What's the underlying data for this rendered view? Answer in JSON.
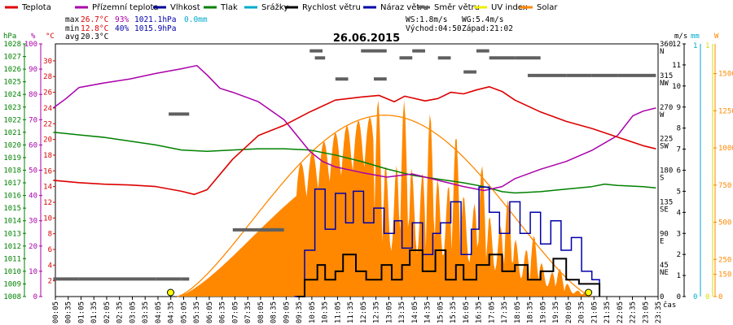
{
  "colors": {
    "teplota": "#dd0000",
    "pocitova": "#aa00aa",
    "vlhkost": "#000099",
    "tlak": "#008000",
    "srazky": "#00aacc",
    "rychlost": "#000000",
    "naraz": "#0000aa",
    "smer": "#606060",
    "uv": "#eeee00",
    "solar": "#ff8800",
    "solarFill": "#ff8800"
  },
  "chart_data": {
    "type": "line",
    "title": "26.06.2015",
    "legend": [
      {
        "key": "teplota",
        "label": "Teplota"
      },
      {
        "key": "pocitova",
        "label": "Přízemní teplota"
      },
      {
        "key": "vlhkost",
        "label": "Vlhkost"
      },
      {
        "key": "tlak",
        "label": "Tlak"
      },
      {
        "key": "srazky",
        "label": "Srážky"
      },
      {
        "key": "rychlost",
        "label": "Rychlost větru"
      },
      {
        "key": "naraz",
        "label": "Náraz větru"
      },
      {
        "key": "smer",
        "label": "Směr větru"
      },
      {
        "key": "uv",
        "label": "UV index"
      },
      {
        "key": "solar",
        "label": "Solar"
      }
    ],
    "stats": {
      "max_label": "max",
      "max_temp": "26.7°C",
      "max_hum": "93%",
      "max_press": "1021.1hPa",
      "rain": "0.0mm",
      "min_label": "min",
      "min_temp": "12.8°C",
      "min_hum": "40%",
      "min_press": "1015.9hPa",
      "avg_label": "avg",
      "avg_temp": "20.3°C",
      "ws": "WS:1.8m/s",
      "wg": "WG:5.4m/s",
      "sunrise": "Východ:04:50",
      "sunset": "Západ:21:02"
    },
    "axis_units": {
      "hpa": "hPa",
      "pct": "%",
      "temp": "°C",
      "ms": "m/s",
      "mm": "mm",
      "w": "W",
      "time": "čas"
    },
    "axes": {
      "hpa": {
        "min": 1008,
        "max": 1028,
        "ticks": [
          1008,
          1009,
          1010,
          1011,
          1012,
          1013,
          1014,
          1015,
          1016,
          1017,
          1018,
          1019,
          1020,
          1021,
          1022,
          1023,
          1024,
          1025,
          1026,
          1027,
          1028
        ]
      },
      "pct": {
        "min": 0,
        "max": 100,
        "ticks": [
          0,
          10,
          20,
          30,
          40,
          50,
          60,
          70,
          80,
          90,
          100
        ]
      },
      "temp": {
        "min": 0,
        "max": 32,
        "ticks": [
          2,
          4,
          6,
          8,
          10,
          12,
          14,
          16,
          18,
          20,
          22,
          24,
          26,
          28,
          30
        ]
      },
      "dir": {
        "ticks": [
          {
            "v": 0,
            "l": "0"
          },
          {
            "v": 45,
            "l": "45\nNE"
          },
          {
            "v": 90,
            "l": "90\nE"
          },
          {
            "v": 135,
            "l": "135\nSE"
          },
          {
            "v": 180,
            "l": "180\nS"
          },
          {
            "v": 225,
            "l": "225\nSW"
          },
          {
            "v": 270,
            "l": "270\nW"
          },
          {
            "v": 315,
            "l": "315\nNW"
          },
          {
            "v": 360,
            "l": "360\nN"
          }
        ]
      },
      "ms": {
        "min": 0,
        "max": 12,
        "ticks": [
          0,
          1,
          2,
          3,
          4,
          5,
          6,
          7,
          8,
          9,
          10,
          11,
          12
        ]
      },
      "mm": {
        "ticks": [
          0,
          1
        ]
      },
      "uv": {
        "ticks": [
          0,
          1
        ]
      },
      "w": {
        "min": 0,
        "max": 1700,
        "ticks": [
          0,
          150,
          250,
          500,
          750,
          1000,
          1250,
          1500
        ]
      }
    },
    "x_ticks": [
      "00:05",
      "00:35",
      "01:05",
      "01:35",
      "02:05",
      "02:35",
      "03:05",
      "03:35",
      "04:05",
      "04:35",
      "05:05",
      "05:35",
      "06:05",
      "06:35",
      "07:05",
      "07:35",
      "08:05",
      "08:35",
      "09:05",
      "09:35",
      "10:05",
      "10:35",
      "11:05",
      "11:35",
      "12:05",
      "12:35",
      "13:05",
      "13:35",
      "14:05",
      "14:35",
      "15:05",
      "15:35",
      "16:05",
      "16:35",
      "17:05",
      "17:35",
      "18:05",
      "18:35",
      "19:05",
      "19:35",
      "20:05",
      "20:35",
      "21:05",
      "21:35",
      "22:05",
      "22:35",
      "23:05",
      "23:35"
    ],
    "series": {
      "teplota": {
        "unit": "°C",
        "points": [
          [
            0,
            14.8
          ],
          [
            1,
            14.5
          ],
          [
            2,
            14.3
          ],
          [
            3,
            14.2
          ],
          [
            4,
            14.0
          ],
          [
            5,
            13.4
          ],
          [
            5.5,
            13.0
          ],
          [
            6,
            13.6
          ],
          [
            7,
            17.5
          ],
          [
            8,
            20.5
          ],
          [
            9,
            21.8
          ],
          [
            10,
            23.5
          ],
          [
            11,
            25.0
          ],
          [
            12,
            25.4
          ],
          [
            12.7,
            25.6
          ],
          [
            13.3,
            24.8
          ],
          [
            13.7,
            25.5
          ],
          [
            14.5,
            24.9
          ],
          [
            15,
            25.2
          ],
          [
            15.5,
            26.0
          ],
          [
            16,
            25.8
          ],
          [
            16.5,
            26.3
          ],
          [
            17,
            26.7
          ],
          [
            17.5,
            26.1
          ],
          [
            18,
            25.0
          ],
          [
            19,
            23.5
          ],
          [
            20,
            22.3
          ],
          [
            21,
            21.4
          ],
          [
            22,
            20.3
          ],
          [
            23,
            19.2
          ],
          [
            23.5,
            18.8
          ]
        ]
      },
      "pocitova": {
        "unit": "°C",
        "points": [
          [
            0,
            24.0
          ],
          [
            0.5,
            25.2
          ],
          [
            1,
            26.6
          ],
          [
            2,
            27.2
          ],
          [
            3,
            27.7
          ],
          [
            4,
            28.4
          ],
          [
            5,
            29.0
          ],
          [
            5.6,
            29.4
          ],
          [
            6,
            28.2
          ],
          [
            6.5,
            26.5
          ],
          [
            7,
            26.0
          ],
          [
            8,
            24.8
          ],
          [
            9,
            22.5
          ],
          [
            10,
            18.5
          ],
          [
            10.5,
            17.2
          ],
          [
            11,
            16.5
          ],
          [
            12,
            15.8
          ],
          [
            13,
            15.2
          ],
          [
            14,
            15.6
          ],
          [
            15,
            14.8
          ],
          [
            16,
            14.0
          ],
          [
            16.8,
            13.5
          ],
          [
            17.5,
            14.0
          ],
          [
            18,
            15.0
          ],
          [
            19,
            16.2
          ],
          [
            20,
            17.2
          ],
          [
            21,
            18.6
          ],
          [
            22,
            20.5
          ],
          [
            22.6,
            23.0
          ],
          [
            23,
            23.6
          ],
          [
            23.5,
            24.0
          ]
        ]
      },
      "tlak": {
        "unit": "hPa",
        "points": [
          [
            0,
            1021.0
          ],
          [
            1,
            1020.8
          ],
          [
            2,
            1020.6
          ],
          [
            3,
            1020.3
          ],
          [
            4,
            1020.0
          ],
          [
            5,
            1019.6
          ],
          [
            6,
            1019.5
          ],
          [
            7,
            1019.6
          ],
          [
            8,
            1019.7
          ],
          [
            9,
            1019.7
          ],
          [
            10,
            1019.6
          ],
          [
            11,
            1019.2
          ],
          [
            12,
            1018.7
          ],
          [
            13,
            1018.1
          ],
          [
            14,
            1017.6
          ],
          [
            15,
            1017.3
          ],
          [
            16,
            1017.0
          ],
          [
            16.8,
            1016.7
          ],
          [
            17.5,
            1016.3
          ],
          [
            18,
            1016.2
          ],
          [
            19,
            1016.3
          ],
          [
            20,
            1016.5
          ],
          [
            21,
            1016.7
          ],
          [
            21.5,
            1016.9
          ],
          [
            22,
            1016.8
          ],
          [
            23,
            1016.7
          ],
          [
            23.5,
            1016.6
          ]
        ]
      },
      "rychlost": {
        "unit": "m/s",
        "points": [
          [
            9.5,
            0
          ],
          [
            9.8,
            0.8
          ],
          [
            10.3,
            1.5
          ],
          [
            10.6,
            0.8
          ],
          [
            11,
            1.2
          ],
          [
            11.3,
            2.0
          ],
          [
            11.8,
            1.2
          ],
          [
            12.2,
            0.8
          ],
          [
            12.8,
            1.5
          ],
          [
            13.2,
            0.8
          ],
          [
            13.6,
            1.5
          ],
          [
            13.9,
            2.2
          ],
          [
            14.4,
            1.2
          ],
          [
            14.9,
            2.2
          ],
          [
            15.3,
            0.8
          ],
          [
            15.7,
            1.5
          ],
          [
            16,
            0.8
          ],
          [
            16.5,
            1.5
          ],
          [
            17,
            2.0
          ],
          [
            17.5,
            1.2
          ],
          [
            18,
            1.5
          ],
          [
            18.5,
            0.8
          ],
          [
            19,
            1.2
          ],
          [
            19.5,
            1.8
          ],
          [
            20,
            0.8
          ],
          [
            20.5,
            0.6
          ],
          [
            21,
            0.6
          ],
          [
            21.3,
            0
          ]
        ]
      },
      "naraz": {
        "unit": "m/s",
        "points": [
          [
            9.4,
            0
          ],
          [
            9.8,
            2.2
          ],
          [
            10.2,
            5.1
          ],
          [
            10.6,
            3.2
          ],
          [
            11,
            4.9
          ],
          [
            11.4,
            3.5
          ],
          [
            11.7,
            5.0
          ],
          [
            12.1,
            3.5
          ],
          [
            12.5,
            4.2
          ],
          [
            12.9,
            3.0
          ],
          [
            13.3,
            3.6
          ],
          [
            13.6,
            2.3
          ],
          [
            14.0,
            3.5
          ],
          [
            14.4,
            2.0
          ],
          [
            14.8,
            3.0
          ],
          [
            15.1,
            3.5
          ],
          [
            15.5,
            4.5
          ],
          [
            15.9,
            2.0
          ],
          [
            16.3,
            3.2
          ],
          [
            16.6,
            5.2
          ],
          [
            17.0,
            4.0
          ],
          [
            17.4,
            3.0
          ],
          [
            17.8,
            4.5
          ],
          [
            18.2,
            3.0
          ],
          [
            18.6,
            4.0
          ],
          [
            19.0,
            2.5
          ],
          [
            19.4,
            3.6
          ],
          [
            19.8,
            2.2
          ],
          [
            20.2,
            2.8
          ],
          [
            20.6,
            1.2
          ],
          [
            21.0,
            0.8
          ],
          [
            21.3,
            0
          ]
        ]
      },
      "smer": {
        "unit": "°",
        "segments": [
          [
            0,
            1,
            25
          ],
          [
            1,
            4,
            25
          ],
          [
            4,
            5,
            25
          ],
          [
            5,
            5.3,
            25
          ],
          [
            4.5,
            5.3,
            260
          ],
          [
            7,
            8,
            95
          ],
          [
            8,
            9,
            95
          ],
          [
            8,
            8.9,
            95
          ],
          [
            10,
            10.5,
            350
          ],
          [
            10.2,
            10.6,
            340
          ],
          [
            11,
            11.5,
            310
          ],
          [
            12,
            13,
            350
          ],
          [
            12.5,
            13,
            310
          ],
          [
            13.5,
            14,
            340
          ],
          [
            14,
            14.5,
            350
          ],
          [
            15,
            15.5,
            340
          ],
          [
            16,
            16.5,
            320
          ],
          [
            16.5,
            17,
            350
          ],
          [
            17,
            18,
            340
          ],
          [
            18,
            19,
            340
          ],
          [
            18.5,
            20,
            315
          ],
          [
            20,
            21,
            315
          ],
          [
            21,
            22,
            315
          ],
          [
            22,
            23.5,
            315
          ]
        ]
      },
      "solar": {
        "unit": "W",
        "curve_max": 1220,
        "sunrise_h": 4.83,
        "sunset_h": 21.03,
        "peak_h": 13.0
      }
    }
  }
}
